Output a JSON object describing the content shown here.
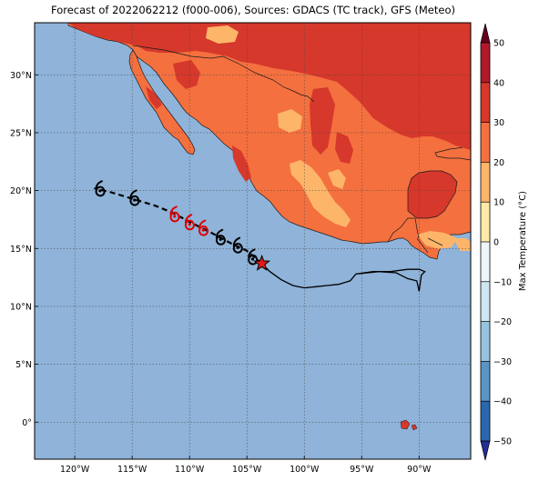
{
  "title": "Forecast of 2022062212 (f000-006), Sources: GDACS (TC track), GFS (Meteo)",
  "map": {
    "lon_range": [
      -123.5,
      -85.5
    ],
    "lat_range": [
      -3.2,
      34.5
    ],
    "lon_ticks": [
      {
        "value": -120,
        "label": "120°W"
      },
      {
        "value": -115,
        "label": "115°W"
      },
      {
        "value": -110,
        "label": "110°W"
      },
      {
        "value": -105,
        "label": "105°W"
      },
      {
        "value": -100,
        "label": "100°W"
      },
      {
        "value": -95,
        "label": "95°W"
      },
      {
        "value": -90,
        "label": "90°W"
      }
    ],
    "lat_ticks": [
      {
        "value": 30,
        "label": "30°N"
      },
      {
        "value": 25,
        "label": "25°N"
      },
      {
        "value": 20,
        "label": "20°N"
      },
      {
        "value": 15,
        "label": "15°N"
      },
      {
        "value": 10,
        "label": "10°N"
      },
      {
        "value": 5,
        "label": "5°N"
      },
      {
        "value": 0,
        "label": "0°"
      }
    ],
    "gridlines": true,
    "ocean_color": "#8fb3d9"
  },
  "colorbar": {
    "label": "Max Temperature (°C)",
    "ticks": [
      "50",
      "40",
      "30",
      "20",
      "10",
      "0",
      "−10",
      "−20",
      "−30",
      "−40",
      "−50"
    ],
    "colors": [
      "#67001f",
      "#b2182b",
      "#d6382b",
      "#f4703f",
      "#fdb56a",
      "#fee9a6",
      "#ecf6f9",
      "#cde6f0",
      "#96c4de",
      "#5b95c6",
      "#2a68ad",
      "#232f95"
    ]
  },
  "track": {
    "past_line": [
      [
        -95.5,
        12.8
      ],
      [
        -93.5,
        13.0
      ],
      [
        -92,
        12.9
      ],
      [
        -91,
        12.4
      ],
      [
        -90.2,
        12.2
      ],
      [
        -90.0,
        11.3
      ],
      [
        -89.8,
        12.7
      ],
      [
        -89.5,
        13.0
      ],
      [
        -90,
        13.2
      ],
      [
        -91,
        13.2
      ],
      [
        -92.5,
        13.0
      ],
      [
        -94,
        13.0
      ],
      [
        -95.5,
        12.8
      ],
      [
        -96,
        12.2
      ],
      [
        -97,
        11.9
      ],
      [
        -98,
        11.8
      ],
      [
        -99,
        11.7
      ],
      [
        -100,
        11.6
      ],
      [
        -101,
        11.8
      ],
      [
        -102,
        12.3
      ],
      [
        -103,
        13.0
      ],
      [
        -103.7,
        13.7
      ]
    ],
    "forecast_line": [
      [
        -103.7,
        13.7
      ],
      [
        -105,
        14.8
      ],
      [
        -106.5,
        15.5
      ],
      [
        -108,
        16.3
      ],
      [
        -110,
        17.3
      ],
      [
        -111.5,
        18.1
      ],
      [
        -113,
        18.7
      ],
      [
        -115,
        19.3
      ],
      [
        -117,
        19.9
      ],
      [
        -118.3,
        20.2
      ]
    ],
    "current_position": [
      -103.7,
      13.7
    ],
    "symbols": [
      {
        "lon": -104.5,
        "lat": 14.2,
        "color": "#000000"
      },
      {
        "lon": -105.8,
        "lat": 15.2,
        "color": "#000000"
      },
      {
        "lon": -107.3,
        "lat": 15.9,
        "color": "#000000"
      },
      {
        "lon": -108.8,
        "lat": 16.7,
        "color": "#e00000"
      },
      {
        "lon": -110.0,
        "lat": 17.2,
        "color": "#e00000"
      },
      {
        "lon": -111.3,
        "lat": 17.9,
        "color": "#e00000"
      },
      {
        "lon": -114.8,
        "lat": 19.3,
        "color": "#000000"
      },
      {
        "lon": -117.8,
        "lat": 20.1,
        "color": "#000000"
      }
    ]
  }
}
